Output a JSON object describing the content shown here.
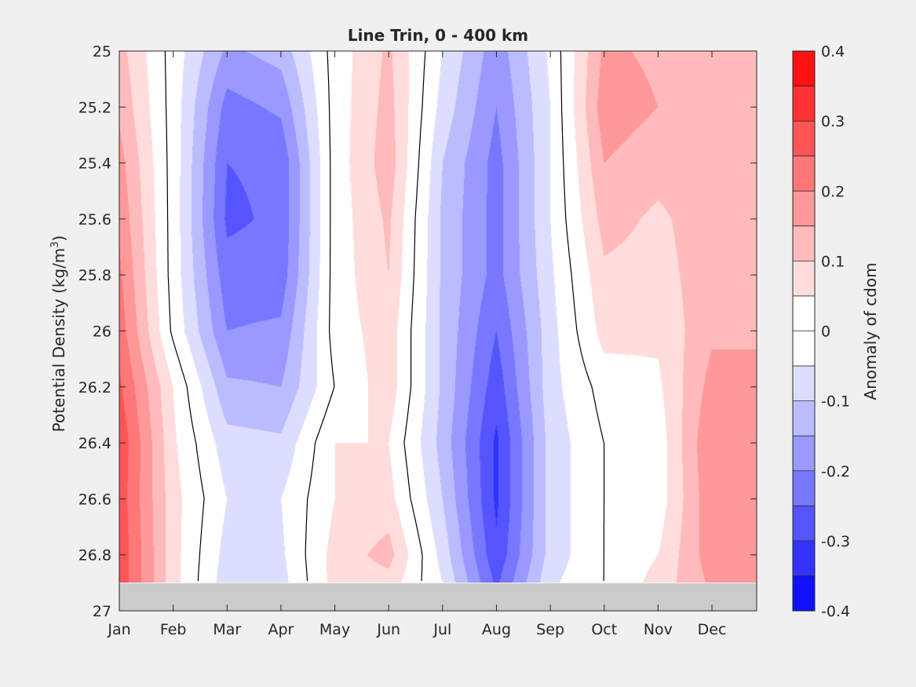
{
  "chart_data": {
    "type": "heatmap",
    "title": "Line Trin, 0 - 400 km",
    "ylabel_main": "Potential Density (kg/m",
    "ylabel_sup": "3",
    "ylabel_close": ")",
    "colorbar_label": "Anomaly of cdom",
    "x_ticks": [
      "Jan",
      "Feb",
      "Mar",
      "Apr",
      "May",
      "Jun",
      "Jul",
      "Aug",
      "Sep",
      "Oct",
      "Nov",
      "Dec"
    ],
    "y_ticks": [
      "25",
      "25.2",
      "25.4",
      "25.6",
      "25.8",
      "26",
      "26.2",
      "26.4",
      "26.6",
      "26.8",
      "27"
    ],
    "y_range": [
      25,
      27
    ],
    "y_reversed": true,
    "data_bottom_density": 26.9,
    "colorbar_ticks": [
      "0.4",
      "0.3",
      "0.2",
      "0.1",
      "0",
      "-0.1",
      "-0.2",
      "-0.3",
      "-0.4"
    ],
    "colorbar_range": [
      -0.4,
      0.4
    ],
    "colorbar_levels": 16,
    "colors": {
      "negative_max": "#0000ff",
      "positive_max": "#ff0000",
      "neutral": "#ffffff",
      "no_data": "#cbcbcb",
      "zero_contour": "#000000"
    },
    "density_levels": [
      25.0,
      25.2,
      25.4,
      25.6,
      25.8,
      26.0,
      26.2,
      26.4,
      26.6,
      26.8,
      26.9
    ],
    "months": [
      "Jan",
      "Feb",
      "Mar",
      "Apr",
      "May",
      "Jun",
      "Jul",
      "Aug",
      "Sep",
      "Oct",
      "Nov",
      "Dec"
    ],
    "anomaly_grid": [
      [
        0.12,
        -0.02,
        -0.16,
        -0.13,
        0.02,
        0.11,
        -0.05,
        -0.18,
        -0.04,
        0.16,
        0.14,
        0.12
      ],
      [
        0.14,
        -0.02,
        -0.22,
        -0.19,
        0.02,
        0.12,
        -0.07,
        -0.2,
        -0.05,
        0.18,
        0.15,
        0.12
      ],
      [
        0.17,
        -0.02,
        -0.25,
        -0.24,
        0.02,
        0.13,
        -0.1,
        -0.22,
        -0.05,
        0.15,
        0.12,
        0.13
      ],
      [
        0.19,
        -0.02,
        -0.26,
        -0.24,
        0.02,
        0.11,
        -0.11,
        -0.22,
        -0.05,
        0.12,
        0.09,
        0.13
      ],
      [
        0.21,
        -0.02,
        -0.23,
        -0.23,
        0.02,
        0.1,
        -0.11,
        -0.22,
        -0.06,
        0.09,
        0.08,
        0.13
      ],
      [
        0.23,
        -0.01,
        -0.2,
        -0.19,
        0.02,
        0.08,
        -0.11,
        -0.25,
        -0.07,
        0.07,
        0.06,
        0.14
      ],
      [
        0.26,
        0.05,
        -0.14,
        -0.15,
        0.0,
        0.08,
        -0.11,
        -0.28,
        -0.07,
        0.02,
        0.04,
        0.17
      ],
      [
        0.29,
        0.06,
        -0.08,
        -0.09,
        0.05,
        0.05,
        -0.12,
        -0.31,
        -0.08,
        0.0,
        0.02,
        0.2
      ],
      [
        0.28,
        0.07,
        -0.05,
        -0.05,
        0.05,
        0.07,
        -0.1,
        -0.31,
        -0.08,
        0.0,
        0.02,
        0.19
      ],
      [
        0.29,
        0.07,
        -0.07,
        -0.06,
        0.07,
        0.12,
        -0.07,
        -0.29,
        -0.08,
        0.0,
        0.05,
        0.18
      ],
      [
        0.29,
        0.07,
        -0.08,
        -0.07,
        0.07,
        0.08,
        -0.05,
        -0.26,
        -0.06,
        0.0,
        0.07,
        0.16
      ]
    ]
  }
}
